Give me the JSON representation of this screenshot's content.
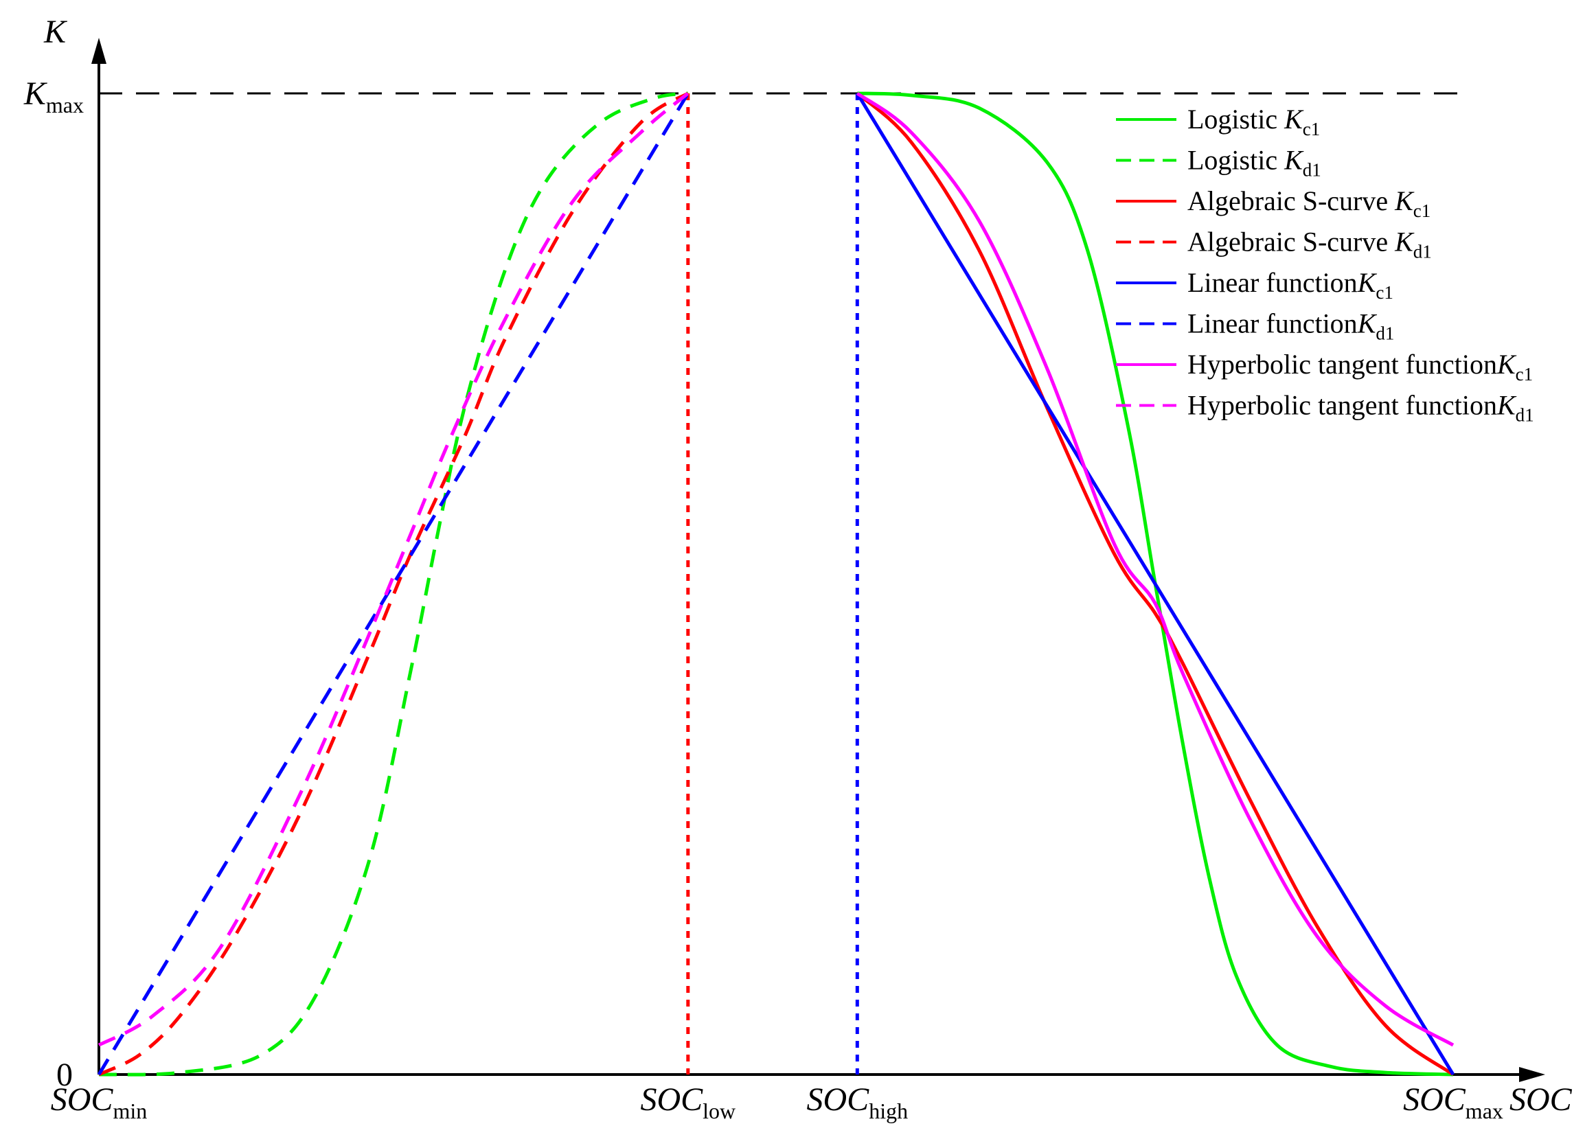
{
  "chart_data": {
    "type": "line",
    "title": "",
    "xlabel": "SOC",
    "ylabel": "K",
    "xlim": [
      0,
      1
    ],
    "ylim": [
      0,
      1
    ],
    "x_ticks": [
      {
        "value": 0,
        "main": "SOC",
        "sub": "min"
      },
      {
        "value": 0.435,
        "main": "SOC",
        "sub": "low"
      },
      {
        "value": 0.56,
        "main": "SOC",
        "sub": "high"
      },
      {
        "value": 1,
        "main": "SOC",
        "sub": "max"
      }
    ],
    "y_ticks": [
      {
        "value": 0,
        "main": "0",
        "sub": ""
      },
      {
        "value": 1,
        "main": "K",
        "sub": "max"
      }
    ],
    "kmax_reference": {
      "y": 1,
      "style": "dashed",
      "color": "#000000"
    },
    "boundary_lines": [
      {
        "name": "SOC_low boundary",
        "x": 0.435,
        "color": "#ff0000",
        "style": "dotted"
      },
      {
        "name": "SOC_high boundary",
        "x": 0.56,
        "color": "#0000ff",
        "style": "dotted"
      }
    ],
    "charge_domain": [
      0.56,
      1.0
    ],
    "discharge_domain": [
      0.0,
      0.435
    ],
    "series": [
      {
        "name": "Logistic K_c1",
        "label": "Logistic",
        "sym": "K",
        "sub": "c1",
        "color": "#00ee00",
        "dash": "solid",
        "values": [
          [
            0.56,
            1.0
          ],
          [
            0.6,
            0.998
          ],
          [
            0.65,
            0.985
          ],
          [
            0.7,
            0.93
          ],
          [
            0.73,
            0.84
          ],
          [
            0.76,
            0.66
          ],
          [
            0.78,
            0.5
          ],
          [
            0.8,
            0.34
          ],
          [
            0.82,
            0.2
          ],
          [
            0.84,
            0.1
          ],
          [
            0.87,
            0.03
          ],
          [
            0.91,
            0.008
          ],
          [
            0.95,
            0.002
          ],
          [
            1.0,
            0.0
          ]
        ]
      },
      {
        "name": "Logistic K_d1",
        "label": "Logistic",
        "sym": "K",
        "sub": "d1",
        "color": "#00ee00",
        "dash": "dashed",
        "values": [
          [
            0.0,
            0.0
          ],
          [
            0.06,
            0.002
          ],
          [
            0.12,
            0.02
          ],
          [
            0.16,
            0.08
          ],
          [
            0.2,
            0.22
          ],
          [
            0.23,
            0.41
          ],
          [
            0.25,
            0.55
          ],
          [
            0.27,
            0.68
          ],
          [
            0.3,
            0.82
          ],
          [
            0.33,
            0.91
          ],
          [
            0.37,
            0.97
          ],
          [
            0.41,
            0.995
          ],
          [
            0.435,
            1.0
          ]
        ]
      },
      {
        "name": "Algebraic S-curve K_c1",
        "label": "Algebraic S-curve",
        "sym": "K",
        "sub": "c1",
        "color": "#ff0000",
        "dash": "solid",
        "values": [
          [
            0.56,
            1.0
          ],
          [
            0.6,
            0.95
          ],
          [
            0.65,
            0.84
          ],
          [
            0.7,
            0.68
          ],
          [
            0.75,
            0.53
          ],
          [
            0.78,
            0.47
          ],
          [
            0.8,
            0.42
          ],
          [
            0.85,
            0.28
          ],
          [
            0.9,
            0.15
          ],
          [
            0.95,
            0.05
          ],
          [
            1.0,
            0.0
          ]
        ]
      },
      {
        "name": "Algebraic S-curve K_d1",
        "label": "Algebraic S-curve",
        "sym": "K",
        "sub": "d1",
        "color": "#ff0000",
        "dash": "dashed",
        "values": [
          [
            0.0,
            0.0
          ],
          [
            0.03,
            0.02
          ],
          [
            0.06,
            0.06
          ],
          [
            0.1,
            0.14
          ],
          [
            0.15,
            0.27
          ],
          [
            0.2,
            0.43
          ],
          [
            0.23,
            0.53
          ],
          [
            0.27,
            0.65
          ],
          [
            0.3,
            0.75
          ],
          [
            0.35,
            0.88
          ],
          [
            0.4,
            0.97
          ],
          [
            0.435,
            1.0
          ]
        ]
      },
      {
        "name": "Linear function K_c1",
        "label": "Linear function",
        "sym": "K",
        "sub": "c1",
        "color": "#0000ff",
        "dash": "solid",
        "values": [
          [
            0.56,
            1.0
          ],
          [
            1.0,
            0.0
          ]
        ]
      },
      {
        "name": "Linear function K_d1",
        "label": "Linear function",
        "sym": "K",
        "sub": "d1",
        "color": "#0000ff",
        "dash": "dashed",
        "values": [
          [
            0.0,
            0.0
          ],
          [
            0.435,
            1.0
          ]
        ]
      },
      {
        "name": "Hyperbolic tangent function K_c1",
        "label": "Hyperbolic tangent function",
        "sym": "K",
        "sub": "c1",
        "color": "#ff00ff",
        "dash": "solid",
        "values": [
          [
            0.56,
            1.0
          ],
          [
            0.6,
            0.96
          ],
          [
            0.65,
            0.87
          ],
          [
            0.7,
            0.72
          ],
          [
            0.75,
            0.54
          ],
          [
            0.78,
            0.48
          ],
          [
            0.8,
            0.41
          ],
          [
            0.85,
            0.26
          ],
          [
            0.9,
            0.14
          ],
          [
            0.95,
            0.07
          ],
          [
            1.0,
            0.03
          ]
        ]
      },
      {
        "name": "Hyperbolic tangent function K_d1",
        "label": "Hyperbolic tangent function",
        "sym": "K",
        "sub": "d1",
        "color": "#ff00ff",
        "dash": "dashed",
        "values": [
          [
            0.0,
            0.03
          ],
          [
            0.04,
            0.06
          ],
          [
            0.09,
            0.13
          ],
          [
            0.15,
            0.29
          ],
          [
            0.2,
            0.45
          ],
          [
            0.23,
            0.55
          ],
          [
            0.26,
            0.65
          ],
          [
            0.3,
            0.77
          ],
          [
            0.35,
            0.89
          ],
          [
            0.4,
            0.96
          ],
          [
            0.435,
            1.0
          ]
        ]
      }
    ]
  }
}
